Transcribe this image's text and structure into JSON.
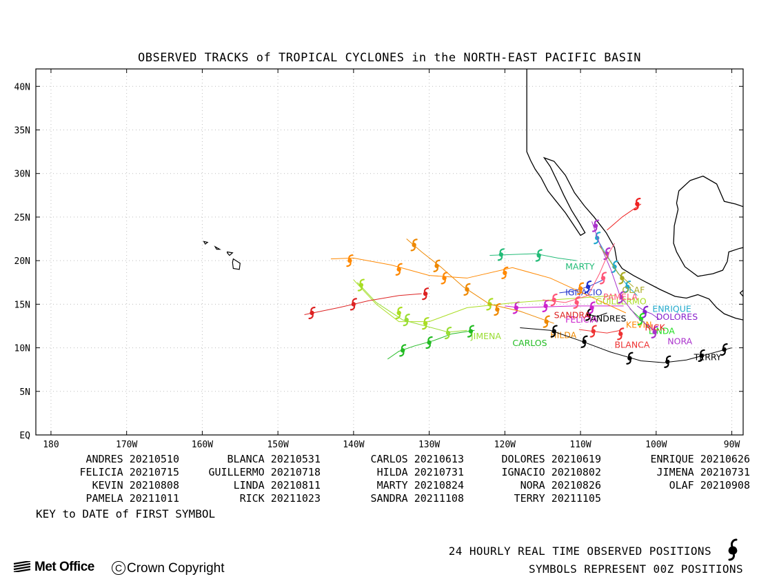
{
  "title": "OBSERVED TRACKS of TROPICAL CYCLONES in the NORTH-EAST PACIFIC BASIN",
  "map": {
    "lon_range": [
      -182,
      -88.5
    ],
    "lat_range": [
      0,
      42
    ],
    "y_ticks": [
      {
        "lat": 40,
        "label": "40N"
      },
      {
        "lat": 35,
        "label": "35N"
      },
      {
        "lat": 30,
        "label": "30N"
      },
      {
        "lat": 25,
        "label": "25N"
      },
      {
        "lat": 20,
        "label": "20N"
      },
      {
        "lat": 15,
        "label": "15N"
      },
      {
        "lat": 10,
        "label": "10N"
      },
      {
        "lat": 5,
        "label": "5N"
      },
      {
        "lat": 0,
        "label": "EQ"
      }
    ],
    "x_ticks": [
      {
        "lon": -180,
        "label": "180"
      },
      {
        "lon": -170,
        "label": "170W"
      },
      {
        "lon": -160,
        "label": "160W"
      },
      {
        "lon": -150,
        "label": "150W"
      },
      {
        "lon": -140,
        "label": "140W"
      },
      {
        "lon": -130,
        "label": "130W"
      },
      {
        "lon": -120,
        "label": "120W"
      },
      {
        "lon": -110,
        "label": "110W"
      },
      {
        "lon": -100,
        "label": "100W"
      },
      {
        "lon": -90,
        "label": "90W"
      }
    ],
    "coast_colour": "#000000",
    "grid_colour": "#bbbbbb"
  },
  "storms": [
    {
      "name": "ANDRES",
      "color": "#000000",
      "label_pos": [
        -108.7,
        13.0
      ],
      "track": [
        [
          -106.5,
          14.0
        ],
        [
          -107.8,
          13.6
        ],
        [
          -108.9,
          13.8
        ]
      ],
      "symbols": [
        [
          -108.9,
          13.8
        ]
      ]
    },
    {
      "name": "BLANCA",
      "color": "#ee3333",
      "label_pos": [
        -105.5,
        10.0
      ],
      "track": [
        [
          -104.7,
          12.0
        ],
        [
          -106.5,
          11.7
        ],
        [
          -108.5,
          11.9
        ],
        [
          -110.2,
          12.1
        ]
      ],
      "symbols": [
        [
          -104.7,
          11.6
        ],
        [
          -108.3,
          11.9
        ]
      ]
    },
    {
      "name": "CARLOS",
      "color": "#22bb22",
      "label_pos": [
        -119.0,
        10.2
      ],
      "track": [
        [
          -124.0,
          12.0
        ],
        [
          -127.0,
          11.6
        ],
        [
          -129.5,
          10.8
        ],
        [
          -132.0,
          10.2
        ],
        [
          -134.0,
          9.6
        ],
        [
          -135.5,
          8.7
        ]
      ],
      "symbols": [
        [
          -124.5,
          11.9
        ],
        [
          -130.0,
          10.6
        ],
        [
          -133.5,
          9.7
        ]
      ]
    },
    {
      "name": "DOLORES",
      "color": "#8822cc",
      "label_pos": [
        -100.0,
        13.2
      ],
      "track": [
        [
          -102.5,
          14.8
        ],
        [
          -101.5,
          14.2
        ],
        [
          -100.6,
          13.9
        ],
        [
          -99.6,
          13.3
        ]
      ],
      "symbols": [
        [
          -101.5,
          14.1
        ]
      ]
    },
    {
      "name": "ENRIQUE",
      "color": "#22aacc",
      "label_pos": [
        -100.5,
        14.1
      ],
      "track": [
        [
          -102.5,
          16.0
        ],
        [
          -103.8,
          17.1
        ],
        [
          -105.2,
          18.8
        ],
        [
          -106.8,
          21.0
        ],
        [
          -108.0,
          22.8
        ]
      ],
      "symbols": [
        [
          -103.8,
          17.0
        ],
        [
          -105.5,
          19.3
        ],
        [
          -107.8,
          22.6
        ]
      ]
    },
    {
      "name": "FELICIA",
      "color": "#cc22cc",
      "label_pos": [
        -112.0,
        12.9
      ],
      "track": [
        [
          -104.3,
          14.8
        ],
        [
          -107.5,
          14.8
        ],
        [
          -110.8,
          14.8
        ],
        [
          -114.5,
          14.7
        ],
        [
          -118.0,
          14.6
        ],
        [
          -120.0,
          14.8
        ]
      ],
      "symbols": [
        [
          -108.5,
          14.6
        ],
        [
          -114.6,
          14.8
        ],
        [
          -118.5,
          14.6
        ]
      ]
    },
    {
      "name": "GUILLERMO",
      "color": "#aadd22",
      "label_pos": [
        -108.0,
        15.0
      ],
      "track": [
        [
          -105.5,
          16.0
        ],
        [
          -112.0,
          15.6
        ],
        [
          -118.5,
          15.2
        ],
        [
          -125.0,
          14.6
        ],
        [
          -130.0,
          13.0
        ],
        [
          -134.0,
          13.0
        ],
        [
          -137.0,
          15.0
        ],
        [
          -140.0,
          17.8
        ]
      ],
      "symbols": [
        [
          -122.0,
          15.0
        ],
        [
          -130.5,
          12.8
        ],
        [
          -134.0,
          14.0
        ],
        [
          -139.0,
          17.2
        ]
      ]
    },
    {
      "name": "HILDA",
      "color": "#ee8800",
      "label_pos": [
        -114.0,
        11.1
      ],
      "track": [
        [
          -113.5,
          12.8
        ],
        [
          -118.0,
          14.2
        ],
        [
          -122.0,
          15.0
        ],
        [
          -125.5,
          17.0
        ],
        [
          -128.5,
          19.3
        ],
        [
          -131.0,
          21.0
        ],
        [
          -133.0,
          22.5
        ]
      ],
      "symbols": [
        [
          -114.5,
          13.0
        ],
        [
          -121.0,
          14.4
        ],
        [
          -125.0,
          16.7
        ],
        [
          -129.0,
          19.4
        ],
        [
          -132.0,
          21.8
        ]
      ]
    },
    {
      "name": "IGNACIO",
      "color": "#2233cc",
      "label_pos": [
        -112.0,
        16.0
      ],
      "track": [
        [
          -107.0,
          17.8
        ],
        [
          -109.0,
          17.0
        ],
        [
          -111.0,
          16.5
        ],
        [
          -112.8,
          16.3
        ]
      ],
      "symbols": [
        [
          -109.0,
          17.0
        ]
      ]
    },
    {
      "name": "JIMENA",
      "color": "#99dd33",
      "label_pos": [
        -124.5,
        11.0
      ],
      "track": [
        [
          -125.0,
          12.0
        ],
        [
          -127.5,
          11.8
        ],
        [
          -130.5,
          12.5
        ],
        [
          -133.5,
          13.2
        ],
        [
          -137.0,
          15.2
        ],
        [
          -139.5,
          17.5
        ]
      ],
      "symbols": [
        [
          -127.5,
          11.7
        ],
        [
          -133.0,
          13.2
        ]
      ]
    },
    {
      "name": "KEVIN",
      "color": "#ff8800",
      "label_pos": [
        -104.0,
        12.3
      ],
      "track": [
        [
          -104.0,
          14.0
        ],
        [
          -109.0,
          16.0
        ],
        [
          -114.0,
          18.0
        ],
        [
          -119.0,
          19.2
        ],
        [
          -125.0,
          18.0
        ],
        [
          -130.0,
          18.3
        ],
        [
          -135.0,
          19.5
        ],
        [
          -140.0,
          20.3
        ],
        [
          -143.0,
          20.2
        ]
      ],
      "symbols": [
        [
          -110.0,
          16.8
        ],
        [
          -120.0,
          18.6
        ],
        [
          -128.0,
          18.0
        ],
        [
          -134.0,
          19.0
        ],
        [
          -140.5,
          20.0
        ]
      ]
    },
    {
      "name": "LINDA",
      "color": "#22dd22",
      "label_pos": [
        -101.0,
        11.6
      ],
      "track": [
        [
          -101.0,
          12.3
        ],
        [
          -102.0,
          13.3
        ],
        [
          -103.5,
          14.5
        ]
      ],
      "symbols": [
        [
          -102.0,
          13.3
        ]
      ]
    },
    {
      "name": "MARTY",
      "color": "#22bb77",
      "label_pos": [
        -112.0,
        19.0
      ],
      "track": [
        [
          -110.5,
          20.0
        ],
        [
          -113.0,
          20.3
        ],
        [
          -116.0,
          20.8
        ],
        [
          -119.0,
          20.7
        ],
        [
          -122.0,
          20.6
        ]
      ],
      "symbols": [
        [
          -115.5,
          20.6
        ],
        [
          -120.5,
          20.7
        ]
      ]
    },
    {
      "name": "NORA",
      "color": "#aa33cc",
      "label_pos": [
        -98.5,
        10.4
      ],
      "track": [
        [
          -100.0,
          11.8
        ],
        [
          -102.5,
          13.5
        ],
        [
          -104.8,
          16.0
        ],
        [
          -106.0,
          19.0
        ],
        [
          -107.5,
          22.0
        ],
        [
          -108.5,
          24.5
        ]
      ],
      "symbols": [
        [
          -100.2,
          11.8
        ],
        [
          -104.6,
          15.8
        ],
        [
          -106.5,
          20.8
        ],
        [
          -108.0,
          24.0
        ]
      ]
    },
    {
      "name": "OLAF",
      "color": "#aaaa22",
      "label_pos": [
        -104.5,
        16.3
      ],
      "track": [
        [
          -103.0,
          17.0
        ],
        [
          -105.0,
          18.5
        ],
        [
          -106.5,
          20.5
        ],
        [
          -107.5,
          21.7
        ]
      ],
      "symbols": [
        [
          -104.5,
          18.0
        ]
      ]
    },
    {
      "name": "PAMELA",
      "color": "#ff5577",
      "label_pos": [
        -107.0,
        15.5
      ],
      "track": [
        [
          -105.5,
          22.0
        ],
        [
          -106.5,
          20.5
        ],
        [
          -107.5,
          18.5
        ],
        [
          -109.0,
          16.0
        ],
        [
          -112.0,
          15.2
        ],
        [
          -115.0,
          15.5
        ]
      ],
      "symbols": [
        [
          -107.0,
          18.0
        ],
        [
          -110.5,
          15.2
        ],
        [
          -113.5,
          15.5
        ]
      ]
    },
    {
      "name": "RICK",
      "color": "#ee2222",
      "label_pos": [
        -101.5,
        12.0
      ],
      "track": [
        [
          -102.0,
          26.5
        ],
        [
          -104.5,
          25.0
        ],
        [
          -106.5,
          23.5
        ]
      ],
      "symbols": [
        [
          -102.5,
          26.5
        ]
      ]
    },
    {
      "name": "SANDRA",
      "color": "#dd2222",
      "label_pos": [
        -113.5,
        13.4
      ],
      "track": [
        [
          -131.0,
          16.2
        ],
        [
          -134.0,
          16.0
        ],
        [
          -138.0,
          15.4
        ],
        [
          -142.0,
          14.6
        ],
        [
          -146.5,
          13.8
        ]
      ],
      "symbols": [
        [
          -130.5,
          16.2
        ],
        [
          -140.0,
          15.0
        ],
        [
          -145.5,
          14.0
        ]
      ]
    },
    {
      "name": "TERRY",
      "color": "#000000",
      "label_pos": [
        -95.0,
        8.6
      ],
      "track": [
        [
          -90.0,
          10.0
        ],
        [
          -93.0,
          9.3
        ],
        [
          -96.0,
          8.6
        ],
        [
          -99.0,
          8.3
        ],
        [
          -102.0,
          8.5
        ],
        [
          -106.0,
          9.5
        ],
        [
          -110.0,
          10.8
        ],
        [
          -114.0,
          12.0
        ],
        [
          -118.0,
          12.3
        ]
      ],
      "symbols": [
        [
          -91.0,
          9.8
        ],
        [
          -94.0,
          9.1
        ],
        [
          -98.5,
          8.4
        ],
        [
          -103.5,
          8.8
        ],
        [
          -109.5,
          10.7
        ],
        [
          -113.5,
          11.9
        ]
      ]
    }
  ],
  "key": {
    "rows": [
      [
        {
          "name": "ANDRES",
          "date": "20210510"
        },
        {
          "name": "BLANCA",
          "date": "20210531"
        },
        {
          "name": "CARLOS",
          "date": "20210613"
        },
        {
          "name": "DOLORES",
          "date": "20210619"
        },
        {
          "name": "ENRIQUE",
          "date": "20210626"
        }
      ],
      [
        {
          "name": "FELICIA",
          "date": "20210715"
        },
        {
          "name": "GUILLERMO",
          "date": "20210718"
        },
        {
          "name": "HILDA",
          "date": "20210731"
        },
        {
          "name": "IGNACIO",
          "date": "20210802"
        },
        {
          "name": "JIMENA",
          "date": "20210731"
        }
      ],
      [
        {
          "name": "KEVIN",
          "date": "20210808"
        },
        {
          "name": "LINDA",
          "date": "20210811"
        },
        {
          "name": "MARTY",
          "date": "20210824"
        },
        {
          "name": "NORA",
          "date": "20210826"
        },
        {
          "name": "OLAF",
          "date": "20210908"
        }
      ],
      [
        {
          "name": "PAMELA",
          "date": "20211011"
        },
        {
          "name": "RICK",
          "date": "20211023"
        },
        {
          "name": "SANDRA",
          "date": "20211108"
        },
        {
          "name": "TERRY",
          "date": "20211105"
        }
      ]
    ],
    "note": "KEY to DATE of FIRST SYMBOL"
  },
  "footer": {
    "line1": "24 HOURLY REAL TIME OBSERVED POSITIONS",
    "line2": "SYMBOLS REPRESENT 00Z POSITIONS",
    "logo": "Met Office",
    "copyright_symbol": "C",
    "copyright": "Crown Copyright",
    "symbol_icon": "cyclone-symbol-icon"
  }
}
